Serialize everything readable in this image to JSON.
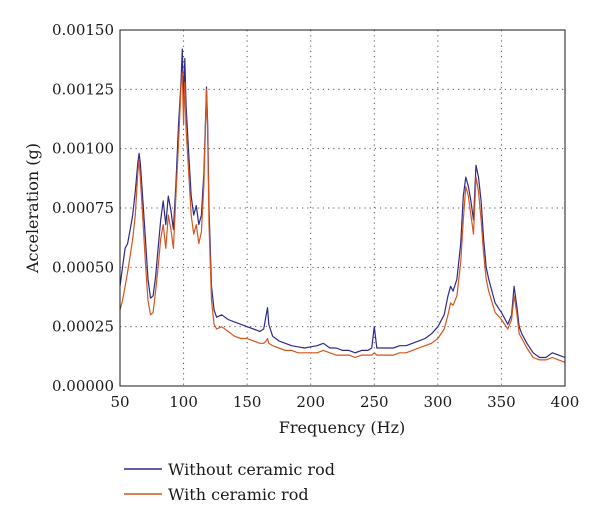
{
  "chart_data": {
    "type": "line",
    "xlabel": "Frequency (Hz)",
    "ylabel": "Acceleration (g)",
    "xlim": [
      50,
      400
    ],
    "ylim": [
      0,
      0.0015
    ],
    "xticks": [
      50,
      100,
      150,
      200,
      250,
      300,
      350,
      400
    ],
    "xtick_labels": [
      "50",
      "100",
      "150",
      "200",
      "250",
      "300",
      "350",
      "400"
    ],
    "yticks": [
      0,
      0.00025,
      0.0005,
      0.00075,
      0.001,
      0.00125,
      0.0015
    ],
    "ytick_labels": [
      "0.00000",
      "0.00025",
      "0.00050",
      "0.00075",
      "0.00100",
      "0.00125",
      "0.00150"
    ],
    "grid": true,
    "legend": "bottom",
    "series": [
      {
        "name": "Without ceramic rod",
        "color": "#2e2a8c",
        "x": [
          50,
          52,
          54,
          56,
          58,
          60,
          62,
          64,
          65,
          66,
          68,
          70,
          72,
          74,
          76,
          78,
          80,
          82,
          84,
          86,
          88,
          90,
          92,
          94,
          96,
          98,
          99,
          100,
          101,
          102,
          104,
          106,
          108,
          110,
          112,
          114,
          116,
          118,
          119,
          120,
          122,
          124,
          126,
          130,
          135,
          140,
          145,
          150,
          155,
          160,
          163,
          165,
          166,
          167,
          170,
          175,
          180,
          185,
          190,
          195,
          200,
          205,
          210,
          215,
          220,
          225,
          230,
          235,
          240,
          245,
          248,
          250,
          252,
          255,
          260,
          265,
          270,
          275,
          280,
          285,
          290,
          295,
          300,
          305,
          308,
          310,
          312,
          315,
          318,
          320,
          322,
          324,
          326,
          328,
          330,
          332,
          334,
          336,
          338,
          340,
          345,
          350,
          355,
          358,
          360,
          362,
          364,
          366,
          370,
          375,
          380,
          385,
          390,
          395,
          400
        ],
        "values": [
          0.00042,
          0.0005,
          0.00058,
          0.0006,
          0.00066,
          0.00072,
          0.00082,
          0.00094,
          0.00098,
          0.00094,
          0.00078,
          0.00062,
          0.00045,
          0.00037,
          0.00038,
          0.00046,
          0.00058,
          0.0007,
          0.00078,
          0.00068,
          0.0008,
          0.00074,
          0.00066,
          0.00085,
          0.0011,
          0.00128,
          0.00142,
          0.00118,
          0.00138,
          0.00118,
          0.00098,
          0.0008,
          0.00072,
          0.00076,
          0.00068,
          0.00072,
          0.0009,
          0.00126,
          0.0011,
          0.00075,
          0.00042,
          0.00032,
          0.00029,
          0.0003,
          0.00028,
          0.00027,
          0.00026,
          0.00025,
          0.00024,
          0.00023,
          0.00024,
          0.0003,
          0.00033,
          0.00026,
          0.00021,
          0.00019,
          0.00018,
          0.00017,
          0.000165,
          0.00016,
          0.000165,
          0.00017,
          0.00018,
          0.00016,
          0.00016,
          0.00015,
          0.00015,
          0.00014,
          0.00015,
          0.00015,
          0.00016,
          0.00025,
          0.00016,
          0.00016,
          0.00016,
          0.00016,
          0.00017,
          0.00017,
          0.00018,
          0.00019,
          0.0002,
          0.00022,
          0.00025,
          0.0003,
          0.00038,
          0.00042,
          0.0004,
          0.00045,
          0.0006,
          0.0008,
          0.00088,
          0.00084,
          0.00078,
          0.0007,
          0.00093,
          0.00088,
          0.00078,
          0.00062,
          0.0005,
          0.00045,
          0.00035,
          0.00031,
          0.00026,
          0.0003,
          0.00042,
          0.00034,
          0.00025,
          0.00022,
          0.00018,
          0.00014,
          0.00012,
          0.00012,
          0.00014,
          0.00013,
          0.00012
        ]
      },
      {
        "name": "With ceramic rod",
        "color": "#d2561e",
        "x": [
          50,
          52,
          54,
          56,
          58,
          60,
          62,
          64,
          65,
          66,
          68,
          70,
          72,
          74,
          76,
          78,
          80,
          82,
          84,
          86,
          88,
          90,
          92,
          94,
          96,
          98,
          99,
          100,
          101,
          102,
          104,
          106,
          108,
          110,
          112,
          114,
          116,
          118,
          119,
          120,
          122,
          124,
          126,
          130,
          135,
          140,
          145,
          150,
          155,
          160,
          163,
          165,
          166,
          167,
          170,
          175,
          180,
          185,
          190,
          195,
          200,
          205,
          210,
          215,
          220,
          225,
          230,
          235,
          240,
          245,
          248,
          250,
          252,
          255,
          260,
          265,
          270,
          275,
          280,
          285,
          290,
          295,
          300,
          305,
          308,
          310,
          312,
          315,
          318,
          320,
          322,
          324,
          326,
          328,
          330,
          332,
          334,
          336,
          338,
          340,
          345,
          350,
          355,
          358,
          360,
          362,
          364,
          366,
          370,
          375,
          380,
          385,
          390,
          395,
          400
        ],
        "values": [
          0.00032,
          0.00036,
          0.00042,
          0.00048,
          0.00055,
          0.00062,
          0.00072,
          0.0009,
          0.00095,
          0.00088,
          0.0007,
          0.00052,
          0.00036,
          0.0003,
          0.00031,
          0.0004,
          0.0005,
          0.00062,
          0.00068,
          0.00058,
          0.00072,
          0.00066,
          0.00058,
          0.0008,
          0.00102,
          0.00126,
          0.00132,
          0.0011,
          0.00128,
          0.00108,
          0.0009,
          0.00072,
          0.00064,
          0.00068,
          0.0006,
          0.00065,
          0.00085,
          0.00125,
          0.00105,
          0.00068,
          0.00036,
          0.00026,
          0.00024,
          0.00025,
          0.00023,
          0.00021,
          0.0002,
          0.0002,
          0.00019,
          0.00018,
          0.00018,
          0.00019,
          0.0002,
          0.00018,
          0.00017,
          0.00016,
          0.00015,
          0.00015,
          0.00014,
          0.00014,
          0.00014,
          0.00014,
          0.00015,
          0.00014,
          0.00013,
          0.00013,
          0.00013,
          0.00012,
          0.00013,
          0.00013,
          0.00013,
          0.00014,
          0.00013,
          0.00013,
          0.00013,
          0.00013,
          0.00014,
          0.00014,
          0.00015,
          0.00016,
          0.00017,
          0.00018,
          0.0002,
          0.00024,
          0.0003,
          0.00035,
          0.00034,
          0.00038,
          0.00052,
          0.0007,
          0.00084,
          0.0008,
          0.00072,
          0.00064,
          0.00088,
          0.00082,
          0.0007,
          0.00056,
          0.00045,
          0.0004,
          0.00031,
          0.00028,
          0.00024,
          0.00028,
          0.00038,
          0.00031,
          0.00022,
          0.0002,
          0.00016,
          0.00012,
          0.00011,
          0.00011,
          0.00012,
          0.00011,
          0.0001
        ]
      }
    ]
  }
}
